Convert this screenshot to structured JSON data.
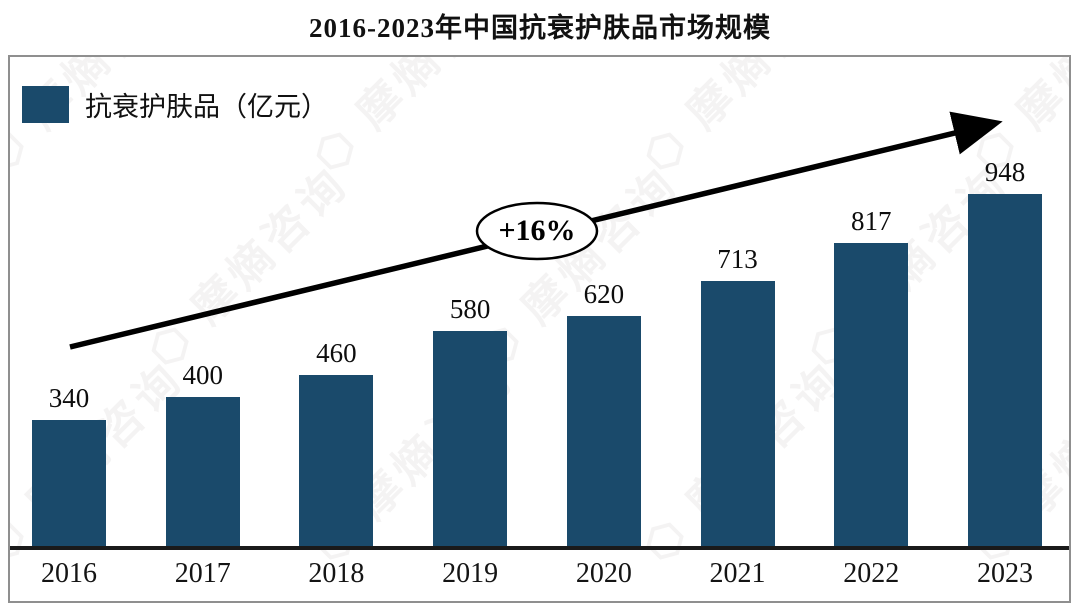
{
  "title": "2016-2023年中国抗衰护肤品市场规模",
  "legend": {
    "label": "抗衰护肤品（亿元）",
    "swatch_color": "#1A4A6B"
  },
  "annotation": {
    "growth_label": "+16%"
  },
  "watermark": {
    "text": "⬡ 摩熵咨询"
  },
  "chart_data": {
    "type": "bar",
    "categories": [
      "2016",
      "2017",
      "2018",
      "2019",
      "2020",
      "2021",
      "2022",
      "2023"
    ],
    "series": [
      {
        "name": "抗衰护肤品（亿元）",
        "values": [
          340,
          400,
          460,
          580,
          620,
          713,
          817,
          948
        ]
      }
    ],
    "title": "2016-2023年中国抗衰护肤品市场规模",
    "xlabel": "",
    "ylabel": "",
    "unit": "亿元",
    "ylim": [
      0,
      1000
    ],
    "grid": false,
    "y_axis_visible": false,
    "legend_position": "top-left",
    "bar_color": "#1A4A6B",
    "annotations": [
      {
        "text": "+16%",
        "type": "trend-arrow",
        "description": "upward arrow across bars with growth rate in ellipse"
      }
    ]
  }
}
